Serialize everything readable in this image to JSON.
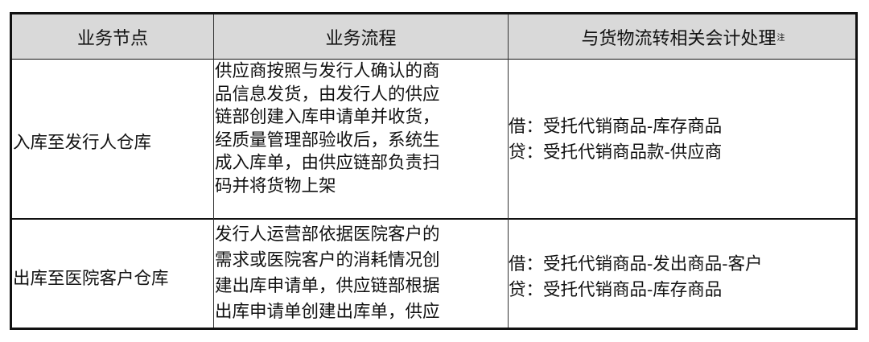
{
  "table": {
    "headers": [
      "业务节点",
      "业务流程",
      "与货物流转相关会计处理"
    ],
    "header_note_mark": "注",
    "rows": [
      {
        "node": "入库至发行人仓库",
        "process_lines": [
          "供应商按照与发行人确认的商",
          "品信息发货，由发行人的供应",
          "链部创建入库申请单并收货，",
          "经质量管理部验收后，系统生",
          "成入库单，由供应链部负责扫",
          "码并将货物上架"
        ],
        "accounting_lines": [
          "借：受托代销商品-库存商品",
          "贷：受托代销商品款-供应商"
        ]
      },
      {
        "node": "出库至医院客户仓库",
        "process_lines": [
          "发行人运营部依据医院客户的",
          "需求或医院客户的消耗情况创",
          "建出库申请单，供应链部根据",
          "出库申请单创建出库单，供应"
        ],
        "accounting_lines": [
          "借：受托代销商品-发出商品-客户",
          "贷：受托代销商品-库存商品"
        ]
      }
    ]
  }
}
